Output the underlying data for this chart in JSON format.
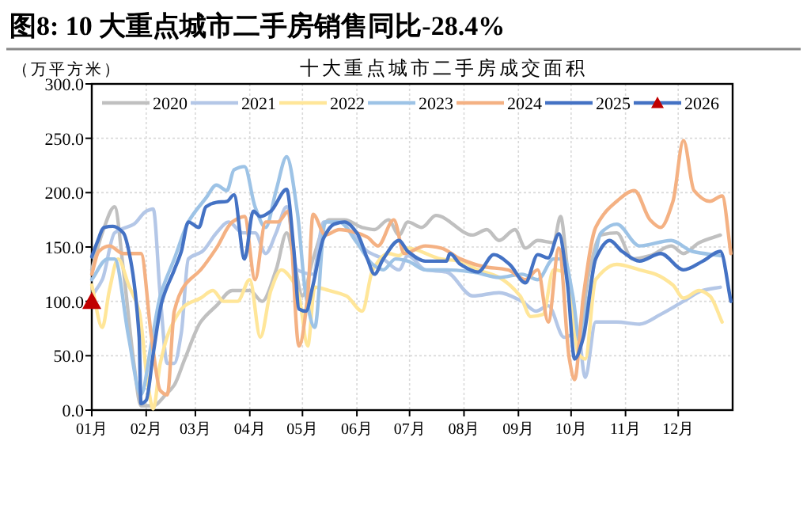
{
  "chart_data": {
    "type": "line",
    "title": "图8:  10 大重点城市二手房销售同比-28.4%",
    "subtitle": "十大重点城市二手房成交面积",
    "ylabel": "（万平方米）",
    "xlim": [
      "--01-01",
      "--12-31"
    ],
    "xticks": [
      {
        "value": "--01-01",
        "label": "01月"
      },
      {
        "value": "--02-01",
        "label": "02月"
      },
      {
        "value": "--03-01",
        "label": "03月"
      },
      {
        "value": "--04-01",
        "label": "04月"
      },
      {
        "value": "--05-01",
        "label": "05月"
      },
      {
        "value": "--06-01",
        "label": "06月"
      },
      {
        "value": "--07-01",
        "label": "07月"
      },
      {
        "value": "--08-01",
        "label": "08月"
      },
      {
        "value": "--09-01",
        "label": "09月"
      },
      {
        "value": "--10-01",
        "label": "10月"
      },
      {
        "value": "--11-01",
        "label": "11月"
      },
      {
        "value": "--12-01",
        "label": "12月"
      }
    ],
    "ylim": [
      0,
      300
    ],
    "yticks": [
      {
        "value": 0,
        "label": "0.0"
      },
      {
        "value": 50,
        "label": "50.0"
      },
      {
        "value": 100,
        "label": "100.0"
      },
      {
        "value": 150,
        "label": "150.0"
      },
      {
        "value": 200,
        "label": "200.0"
      },
      {
        "value": 250,
        "label": "250.0"
      },
      {
        "value": 300,
        "label": "300.0"
      }
    ],
    "grid": true,
    "legend": "top",
    "marker": "none",
    "line_style": "solid",
    "series": [
      {
        "name": "2020",
        "color": "#c0c0c0",
        "x": [
          "--01-01",
          "--01-07",
          "--01-14",
          "--01-19",
          "--01-25",
          "--01-29",
          "--02-05",
          "--02-12",
          "--02-17",
          "--02-23",
          "--03-04",
          "--03-13",
          "--03-22",
          "--04-01",
          "--04-08",
          "--04-16",
          "--04-22",
          "--04-26",
          "--05-01",
          "--05-07",
          "--05-16",
          "--05-25",
          "--06-04",
          "--06-11",
          "--06-19",
          "--06-25",
          "--06-30",
          "--07-08",
          "--07-16",
          "--08-06",
          "--08-14",
          "--08-21",
          "--08-30",
          "--09-05",
          "--09-12",
          "--09-21",
          "--09-25",
          "--09-29",
          "--10-05",
          "--10-11",
          "--10-18",
          "--10-27",
          "--11-05",
          "--11-15",
          "--11-27",
          "--12-04",
          "--12-13",
          "--12-25"
        ],
        "values": [
          129,
          163,
          187,
          129,
          43,
          4,
          4,
          14,
          23,
          47,
          81,
          96,
          110,
          110,
          100,
          129,
          163,
          139,
          105,
          139,
          175,
          175,
          168,
          166,
          175,
          161,
          173,
          168,
          179,
          161,
          166,
          156,
          166,
          149,
          156,
          154,
          178,
          129,
          62,
          125,
          161,
          163,
          139,
          142,
          151,
          144,
          154,
          161
        ]
      },
      {
        "name": "2021",
        "color": "#b4c7e7",
        "x": [
          "--01-01",
          "--01-07",
          "--01-14",
          "--01-25",
          "--02-01",
          "--02-05",
          "--02-09",
          "--02-13",
          "--02-17",
          "--02-21",
          "--02-25",
          "--03-05",
          "--03-13",
          "--03-20",
          "--03-28",
          "--04-04",
          "--04-10",
          "--04-16",
          "--04-22",
          "--04-28",
          "--05-07",
          "--05-13",
          "--05-22",
          "--05-29",
          "--06-07",
          "--06-16",
          "--06-25",
          "--06-30",
          "--07-10",
          "--07-22",
          "--08-06",
          "--08-21",
          "--09-03",
          "--09-11",
          "--09-18",
          "--09-27",
          "--10-05",
          "--10-09",
          "--10-15",
          "--10-27",
          "--11-09",
          "--11-21",
          "--12-04",
          "--12-15",
          "--12-25"
        ],
        "values": [
          105,
          120,
          163,
          171,
          183,
          185,
          105,
          43,
          43,
          71,
          139,
          146,
          163,
          173,
          163,
          163,
          144,
          163,
          187,
          129,
          125,
          173,
          173,
          163,
          146,
          139,
          129,
          142,
          129,
          127,
          105,
          108,
          100,
          91,
          96,
          67,
          71,
          30,
          81,
          81,
          79,
          88,
          100,
          110,
          113
        ]
      },
      {
        "name": "2022",
        "color": "#ffe699",
        "x": [
          "--01-01",
          "--01-07",
          "--01-11",
          "--01-16",
          "--01-22",
          "--01-28",
          "--02-02",
          "--02-05",
          "--02-09",
          "--02-15",
          "--02-23",
          "--03-04",
          "--03-11",
          "--03-17",
          "--03-25",
          "--04-01",
          "--04-07",
          "--04-13",
          "--04-19",
          "--04-25",
          "--04-29",
          "--05-04",
          "--05-08",
          "--05-16",
          "--05-26",
          "--06-04",
          "--06-10",
          "--06-19",
          "--06-25",
          "--06-30",
          "--07-19",
          "--07-30",
          "--08-09",
          "--08-21",
          "--09-02",
          "--09-08",
          "--09-15",
          "--09-21",
          "--09-29",
          "--10-05",
          "--10-09",
          "--10-15",
          "--10-27",
          "--11-09",
          "--11-18",
          "--11-28",
          "--12-04",
          "--12-13",
          "--12-19",
          "--12-26"
        ],
        "values": [
          115,
          76,
          110,
          139,
          115,
          91,
          23,
          1,
          43,
          76,
          96,
          103,
          110,
          100,
          100,
          120,
          67,
          110,
          129,
          120,
          105,
          59,
          113,
          110,
          105,
          91,
          129,
          144,
          142,
          149,
          139,
          137,
          129,
          122,
          105,
          86,
          88,
          129,
          125,
          52,
          47,
          120,
          134,
          129,
          125,
          115,
          103,
          110,
          105,
          81
        ]
      },
      {
        "name": "2023",
        "color": "#9dc3e6",
        "x": [
          "--01-01",
          "--01-10",
          "--01-14",
          "--01-22",
          "--01-29",
          "--02-04",
          "--02-09",
          "--02-17",
          "--02-25",
          "--03-07",
          "--03-13",
          "--03-19",
          "--03-23",
          "--03-29",
          "--04-04",
          "--04-10",
          "--04-16",
          "--04-22",
          "--04-28",
          "--05-03",
          "--05-08",
          "--05-14",
          "--05-22",
          "--06-01",
          "--06-10",
          "--06-16",
          "--06-23",
          "--06-30",
          "--07-10",
          "--07-22",
          "--08-06",
          "--08-21",
          "--09-03",
          "--09-12",
          "--09-21",
          "--09-27",
          "--10-02",
          "--10-06",
          "--10-11",
          "--10-18",
          "--10-27",
          "--11-09",
          "--11-27",
          "--12-09",
          "--12-25"
        ],
        "values": [
          120,
          139,
          139,
          67,
          14,
          62,
          105,
          139,
          173,
          195,
          207,
          202,
          221,
          224,
          187,
          168,
          202,
          233,
          183,
          105,
          76,
          173,
          173,
          154,
          134,
          129,
          139,
          137,
          129,
          129,
          127,
          122,
          125,
          120,
          139,
          139,
          105,
          62,
          103,
          163,
          171,
          151,
          156,
          146,
          142
        ]
      },
      {
        "name": "2024",
        "color": "#f4b183",
        "x": [
          "--01-01",
          "--01-05",
          "--01-11",
          "--01-19",
          "--01-29",
          "--02-04",
          "--02-09",
          "--02-13",
          "--02-17",
          "--02-23",
          "--03-04",
          "--03-13",
          "--03-22",
          "--03-29",
          "--04-04",
          "--04-10",
          "--04-17",
          "--04-23",
          "--04-29",
          "--05-04",
          "--05-07",
          "--05-14",
          "--05-22",
          "--06-01",
          "--06-07",
          "--06-13",
          "--06-22",
          "--06-28",
          "--07-10",
          "--07-19",
          "--07-30",
          "--08-12",
          "--08-26",
          "--09-05",
          "--09-12",
          "--09-18",
          "--09-24",
          "--09-30",
          "--10-03",
          "--10-08",
          "--10-15",
          "--10-27",
          "--11-06",
          "--11-15",
          "--11-21",
          "--11-28",
          "--12-04",
          "--12-10",
          "--12-19",
          "--12-26",
          "--12-31"
        ],
        "values": [
          125,
          146,
          151,
          144,
          144,
          67,
          18,
          14,
          91,
          115,
          129,
          149,
          173,
          178,
          120,
          173,
          173,
          183,
          59,
          105,
          180,
          161,
          166,
          163,
          159,
          151,
          175,
          144,
          151,
          149,
          139,
          132,
          129,
          120,
          129,
          81,
          149,
          47,
          28,
          105,
          168,
          192,
          202,
          175,
          168,
          192,
          248,
          202,
          192,
          197,
          144
        ]
      },
      {
        "name": "2025",
        "color": "#4472c4",
        "x": [
          "--01-01",
          "--01-04",
          "--01-08",
          "--01-13",
          "--01-19",
          "--01-23",
          "--01-28",
          "--01-29",
          "--02-01",
          "--02-05",
          "--02-10",
          "--02-17",
          "--02-21",
          "--02-25",
          "--03-03",
          "--03-07",
          "--03-13",
          "--03-19",
          "--03-23",
          "--03-29",
          "--04-03",
          "--04-07",
          "--04-13",
          "--04-22",
          "--04-26",
          "--04-29",
          "--05-03",
          "--05-07",
          "--05-13",
          "--05-19",
          "--05-25",
          "--06-01",
          "--06-07",
          "--06-11",
          "--06-16",
          "--06-25",
          "--06-30",
          "--07-10",
          "--07-22",
          "--07-24",
          "--07-30",
          "--08-09",
          "--08-18",
          "--08-27",
          "--09-05",
          "--09-12",
          "--09-18",
          "--09-24",
          "--09-29",
          "--10-03",
          "--10-08",
          "--10-15",
          "--10-23",
          "--10-30",
          "--11-09",
          "--11-21",
          "--12-04",
          "--12-15",
          "--12-25",
          "--12-31"
        ],
        "values": [
          141,
          154,
          168,
          169,
          163,
          139,
          67,
          6,
          9,
          52,
          100,
          129,
          146,
          173,
          168,
          187,
          191,
          192,
          198,
          139,
          183,
          178,
          183,
          203,
          149,
          93,
          91,
          115,
          158,
          171,
          173,
          163,
          139,
          125,
          139,
          156,
          146,
          137,
          137,
          144,
          134,
          127,
          143,
          134,
          117,
          143,
          140,
          162,
          115,
          47,
          67,
          139,
          156,
          146,
          137,
          144,
          129,
          137,
          146,
          100
        ]
      },
      {
        "name": "2026",
        "color": "#4472c4",
        "colors": [
          "#c00000"
        ],
        "marker": "triangle",
        "x": [
          "--01-01"
        ],
        "values": [
          100
        ]
      }
    ]
  }
}
